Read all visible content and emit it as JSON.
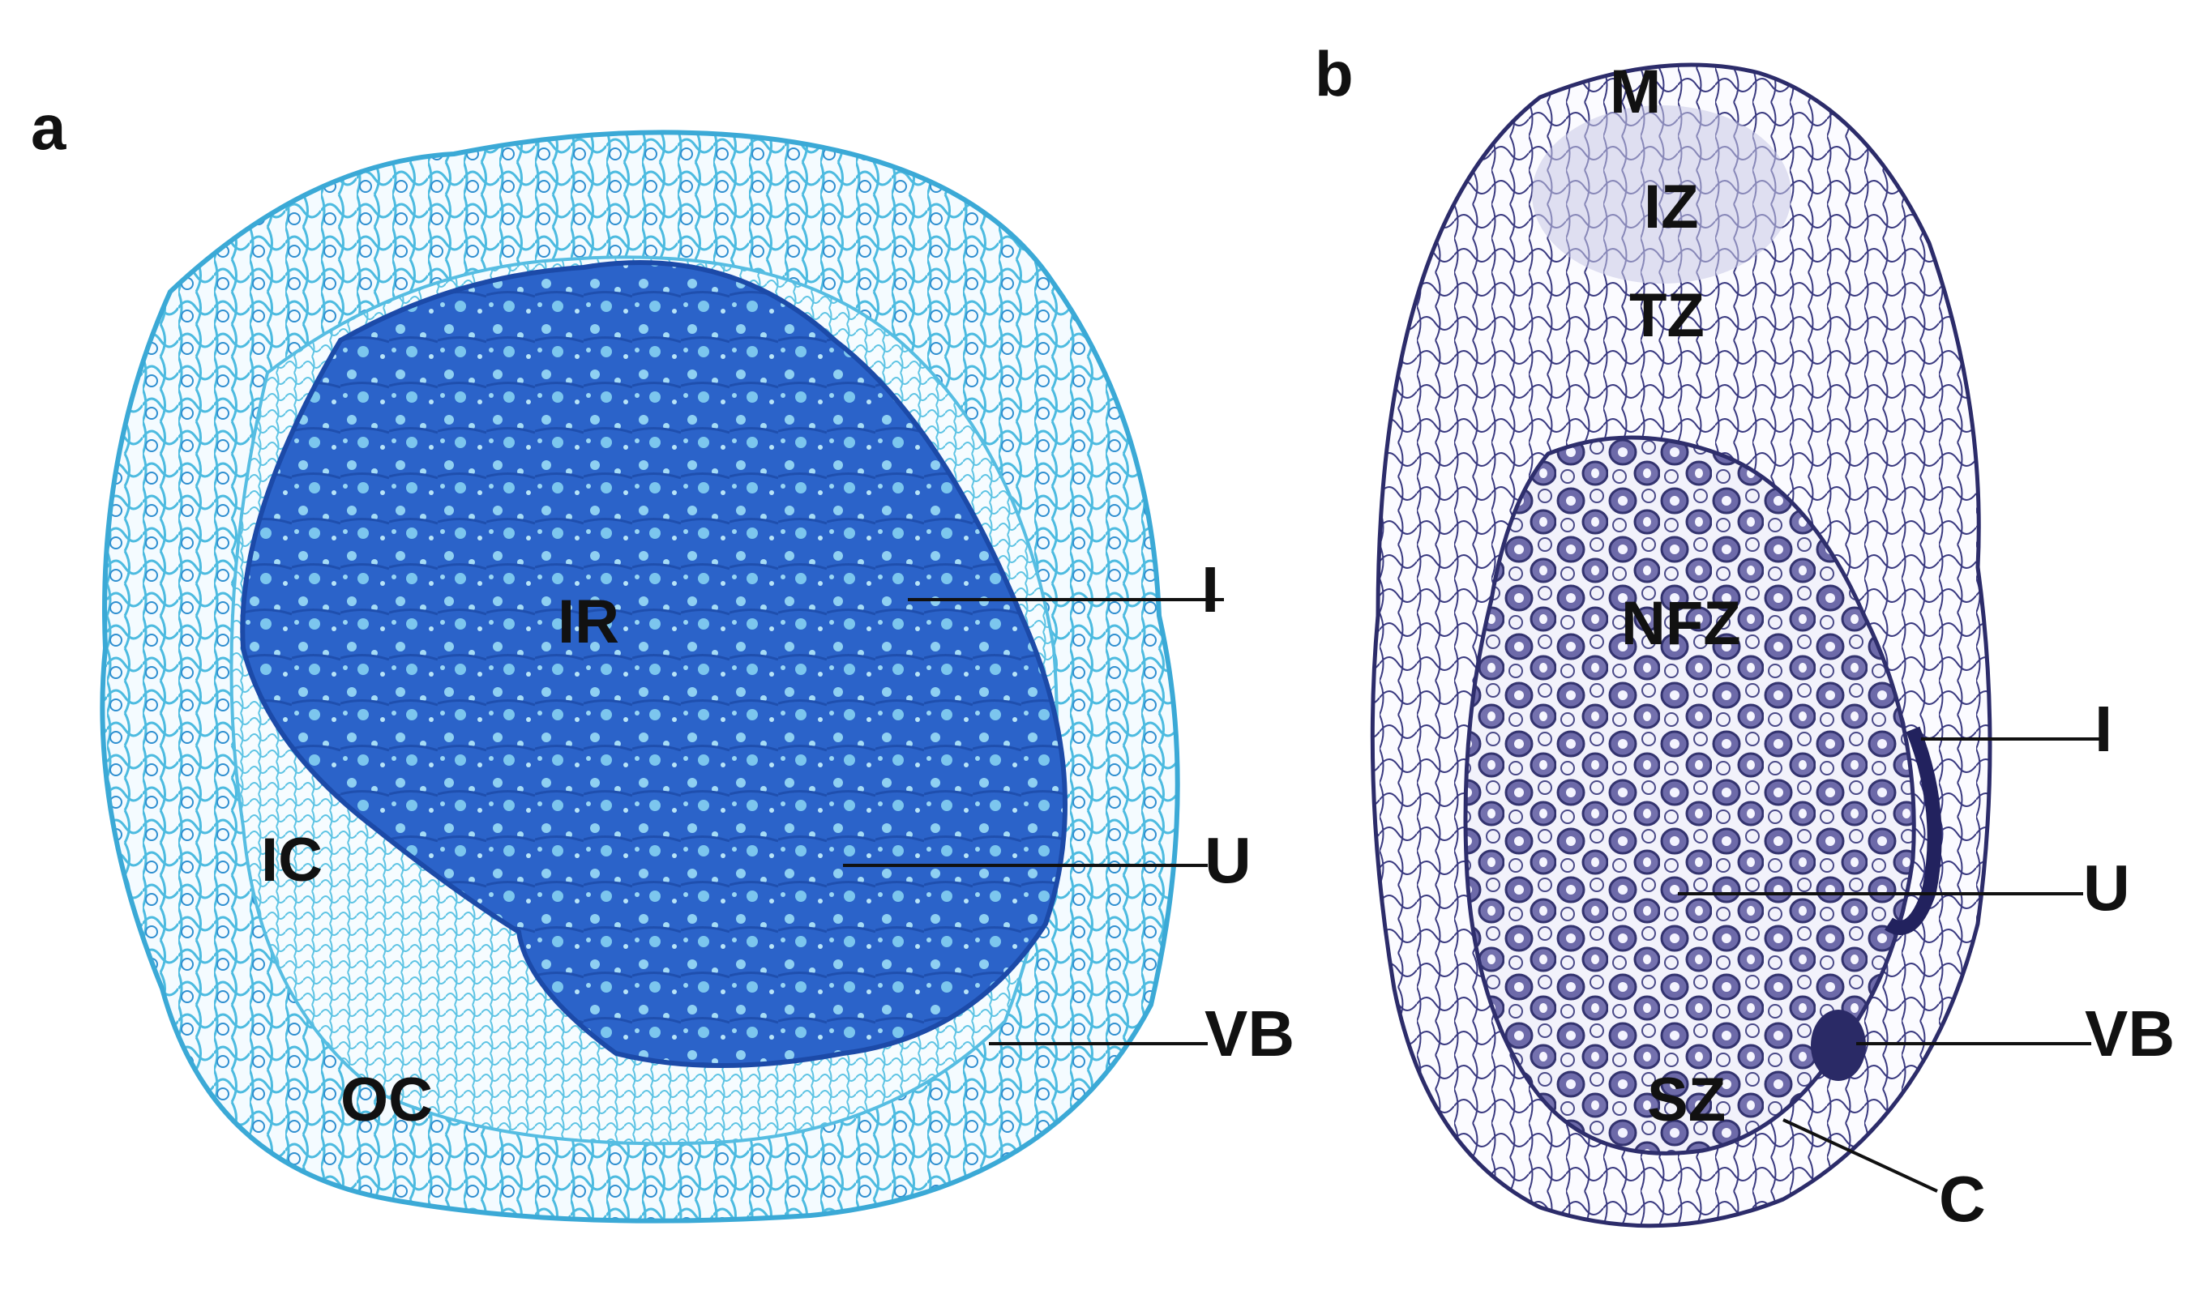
{
  "figure": {
    "panel_a": {
      "letter": "a",
      "labels": {
        "IR": "IR",
        "IC": "IC",
        "OC": "OC",
        "I": "I",
        "U": "U",
        "VB": "VB"
      },
      "colors": {
        "infected_region": "#2a62c8",
        "cell_walls": "#3fb3d8",
        "background": "#ffffff"
      }
    },
    "panel_b": {
      "letter": "b",
      "labels": {
        "M": "M",
        "IZ": "IZ",
        "TZ": "TZ",
        "NFZ": "NFZ",
        "SZ": "SZ",
        "I": "I",
        "U": "U",
        "VB": "VB",
        "C": "C"
      },
      "colors": {
        "infected_cells": "#6a68a8",
        "cell_walls": "#2a2a6e",
        "background": "#ffffff"
      }
    }
  }
}
